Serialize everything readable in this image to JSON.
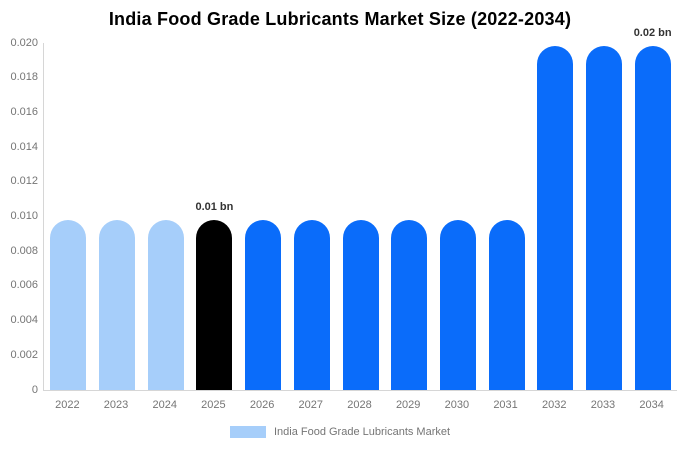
{
  "colors": {
    "light_blue": "#A6CEFA",
    "bright_blue": "#0A6CFA",
    "black_bar": "#000000",
    "axis": "#D6D6D6",
    "tick_text": "#757575",
    "annotation_text": "#333333",
    "title_text": "#000000"
  },
  "chart_data": {
    "type": "bar",
    "title": "India Food Grade Lubricants Market Size (2022-2034)",
    "xlabel": "",
    "ylabel": "",
    "categories": [
      "2022",
      "2023",
      "2024",
      "2025",
      "2026",
      "2027",
      "2028",
      "2029",
      "2030",
      "2031",
      "2032",
      "2033",
      "2034"
    ],
    "values": [
      0.0098,
      0.0098,
      0.0098,
      0.0098,
      0.0098,
      0.0098,
      0.0098,
      0.0098,
      0.0098,
      0.0098,
      0.0198,
      0.0198,
      0.0198
    ],
    "bar_colors": [
      "#A6CEFA",
      "#A6CEFA",
      "#A6CEFA",
      "#000000",
      "#0A6CFA",
      "#0A6CFA",
      "#0A6CFA",
      "#0A6CFA",
      "#0A6CFA",
      "#0A6CFA",
      "#0A6CFA",
      "#0A6CFA",
      "#0A6CFA"
    ],
    "annotations": [
      {
        "index": 3,
        "text": "0.01 bn"
      },
      {
        "index": 12,
        "text": "0.02 bn"
      }
    ],
    "ylim": [
      0,
      0.02
    ],
    "ytick_labels": [
      "0",
      "0.002",
      "0.004",
      "0.006",
      "0.008",
      "0.010",
      "0.012",
      "0.014",
      "0.016",
      "0.018",
      "0.020"
    ],
    "grid": false,
    "legend_position": "bottom",
    "legend": [
      {
        "label": "India Food Grade Lubricants Market",
        "color": "#A6CEFA"
      }
    ]
  }
}
